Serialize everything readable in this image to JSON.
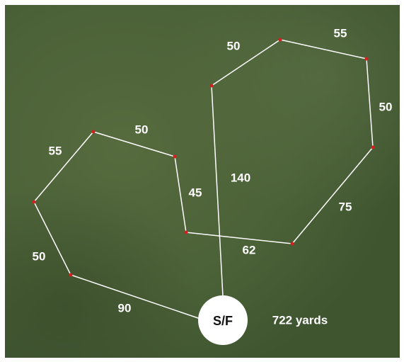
{
  "start_label": "S/F",
  "total": "722 yards",
  "legs": [
    "140",
    "50",
    "55",
    "50",
    "75",
    "62",
    "45",
    "50",
    "55",
    "50",
    "90"
  ]
}
